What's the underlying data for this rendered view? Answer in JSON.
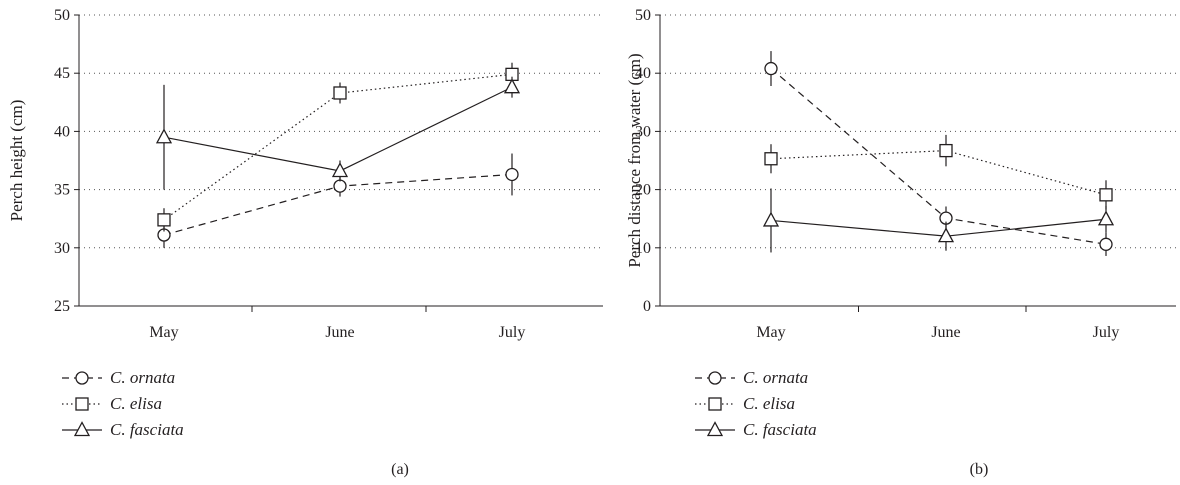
{
  "figure": {
    "panels": [
      {
        "id": "a",
        "caption": "(a)"
      },
      {
        "id": "b",
        "caption": "(b)"
      }
    ]
  },
  "colors": {
    "ink": "#231f20",
    "grid": "#555555"
  },
  "chart_data": [
    {
      "type": "line",
      "title": "",
      "caption": "(a)",
      "categories": [
        "May",
        "June",
        "July"
      ],
      "xlabel": "",
      "ylabel": "Perch height (cm)",
      "ylim": [
        25,
        50
      ],
      "yticks": [
        25,
        30,
        35,
        40,
        45,
        50
      ],
      "grid": "horizontal dotted",
      "legend_position": "bottom-left",
      "series": [
        {
          "name": "C. ornata",
          "marker": "circle",
          "dash": "dashed",
          "values": [
            31.1,
            35.3,
            36.3
          ],
          "errors": [
            1.1,
            0.9,
            1.8
          ]
        },
        {
          "name": "C. elisa",
          "marker": "square",
          "dash": "dotted",
          "values": [
            32.4,
            43.3,
            44.9
          ],
          "errors": [
            1.0,
            0.9,
            1.0
          ]
        },
        {
          "name": "C. fasciata",
          "marker": "triangle",
          "dash": "solid",
          "values": [
            39.5,
            36.6,
            43.8
          ],
          "errors": [
            4.5,
            0.9,
            0.9
          ]
        }
      ]
    },
    {
      "type": "line",
      "title": "",
      "caption": "(b)",
      "categories": [
        "May",
        "June",
        "July"
      ],
      "xlabel": "",
      "ylabel": "Perch distance from water (cm)",
      "ylim": [
        0,
        50
      ],
      "yticks": [
        0,
        10,
        20,
        30,
        40,
        50
      ],
      "grid": "horizontal dotted",
      "legend_position": "bottom-left",
      "series": [
        {
          "name": "C. ornata",
          "marker": "circle",
          "dash": "dashed",
          "values": [
            40.8,
            15.1,
            10.6
          ],
          "errors": [
            3.0,
            2.0,
            2.0
          ]
        },
        {
          "name": "C. elisa",
          "marker": "square",
          "dash": "dotted",
          "values": [
            25.3,
            26.7,
            19.1
          ],
          "errors": [
            2.5,
            2.7,
            2.5
          ]
        },
        {
          "name": "C. fasciata",
          "marker": "triangle",
          "dash": "solid",
          "values": [
            14.7,
            12.0,
            14.9
          ],
          "errors": [
            5.5,
            2.5,
            2.3
          ]
        }
      ]
    }
  ]
}
